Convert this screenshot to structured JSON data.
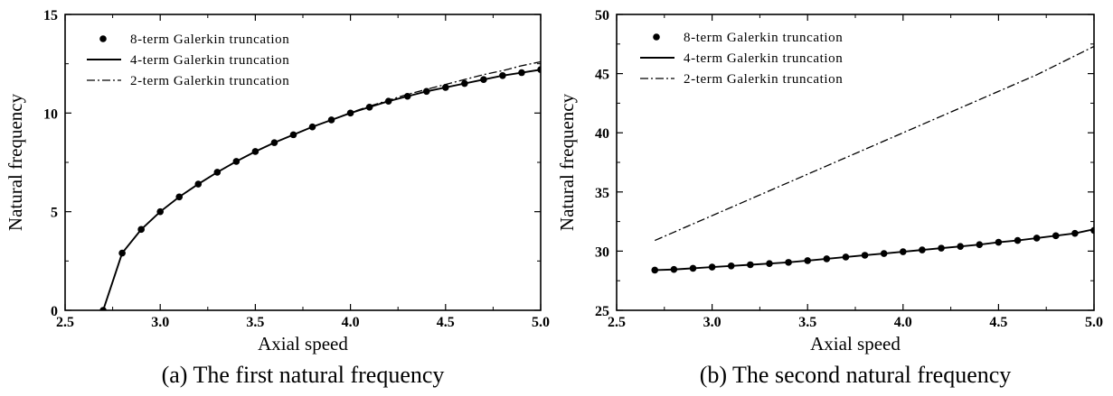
{
  "chart_data": [
    {
      "type": "line",
      "caption": "(a) The first natural frequency",
      "xlabel": "Axial speed",
      "ylabel": "Natural frequency",
      "xlim": [
        2.5,
        5.0
      ],
      "ylim": [
        0,
        15
      ],
      "xticks": [
        "2.5",
        "3.0",
        "3.5",
        "4.0",
        "4.5",
        "5.0"
      ],
      "yticks": [
        "0",
        "5",
        "10",
        "15"
      ],
      "legend_position": "top-left",
      "series": [
        {
          "name": "8-term Galerkin truncation",
          "style": "markers",
          "x": [
            2.7,
            2.8,
            2.9,
            3.0,
            3.1,
            3.2,
            3.3,
            3.4,
            3.5,
            3.6,
            3.7,
            3.8,
            3.9,
            4.0,
            4.1,
            4.2,
            4.3,
            4.4,
            4.5,
            4.6,
            4.7,
            4.8,
            4.9,
            5.0
          ],
          "y": [
            0.0,
            2.9,
            4.1,
            5.0,
            5.75,
            6.4,
            7.0,
            7.55,
            8.05,
            8.5,
            8.9,
            9.3,
            9.65,
            10.0,
            10.3,
            10.6,
            10.85,
            11.1,
            11.3,
            11.5,
            11.7,
            11.9,
            12.05,
            12.2
          ]
        },
        {
          "name": "4-term Galerkin truncation",
          "style": "solid",
          "x": [
            2.7,
            2.8,
            2.9,
            3.0,
            3.1,
            3.2,
            3.3,
            3.4,
            3.5,
            3.6,
            3.7,
            3.8,
            3.9,
            4.0,
            4.1,
            4.2,
            4.3,
            4.4,
            4.5,
            4.6,
            4.7,
            4.8,
            4.9,
            5.0
          ],
          "y": [
            0.0,
            2.9,
            4.1,
            5.0,
            5.75,
            6.4,
            7.0,
            7.55,
            8.05,
            8.5,
            8.9,
            9.3,
            9.65,
            10.0,
            10.3,
            10.6,
            10.85,
            11.1,
            11.3,
            11.5,
            11.7,
            11.9,
            12.05,
            12.2
          ]
        },
        {
          "name": "2-term Galerkin truncation",
          "style": "dash-dot",
          "x": [
            2.7,
            2.8,
            2.9,
            3.0,
            3.1,
            3.2,
            3.3,
            3.4,
            3.5,
            3.6,
            3.7,
            3.8,
            3.9,
            4.0,
            4.1,
            4.2,
            4.3,
            4.4,
            4.5,
            4.6,
            4.7,
            4.8,
            4.9,
            5.0
          ],
          "y": [
            0.0,
            2.9,
            4.1,
            5.0,
            5.75,
            6.4,
            7.0,
            7.55,
            8.05,
            8.5,
            8.9,
            9.3,
            9.65,
            10.02,
            10.35,
            10.65,
            10.95,
            11.2,
            11.45,
            11.7,
            11.95,
            12.15,
            12.4,
            12.6
          ]
        }
      ]
    },
    {
      "type": "line",
      "caption": "(b) The second natural frequency",
      "xlabel": "Axial speed",
      "ylabel": "Natural frequency",
      "xlim": [
        2.5,
        5.0
      ],
      "ylim": [
        25,
        50
      ],
      "xticks": [
        "2.5",
        "3.0",
        "3.5",
        "4.0",
        "4.5",
        "5.0"
      ],
      "yticks": [
        "25",
        "30",
        "35",
        "40",
        "45",
        "50"
      ],
      "legend_position": "top-left",
      "series": [
        {
          "name": "8-term Galerkin truncation",
          "style": "markers",
          "x": [
            2.7,
            2.8,
            2.9,
            3.0,
            3.1,
            3.2,
            3.3,
            3.4,
            3.5,
            3.6,
            3.7,
            3.8,
            3.9,
            4.0,
            4.1,
            4.2,
            4.3,
            4.4,
            4.5,
            4.6,
            4.7,
            4.8,
            4.9,
            5.0
          ],
          "y": [
            28.4,
            28.45,
            28.55,
            28.65,
            28.75,
            28.85,
            28.95,
            29.05,
            29.2,
            29.35,
            29.5,
            29.65,
            29.8,
            29.95,
            30.1,
            30.25,
            30.4,
            30.55,
            30.75,
            30.9,
            31.1,
            31.3,
            31.5,
            31.75
          ]
        },
        {
          "name": "4-term Galerkin truncation",
          "style": "solid",
          "x": [
            2.7,
            2.8,
            2.9,
            3.0,
            3.1,
            3.2,
            3.3,
            3.4,
            3.5,
            3.6,
            3.7,
            3.8,
            3.9,
            4.0,
            4.1,
            4.2,
            4.3,
            4.4,
            4.5,
            4.6,
            4.7,
            4.8,
            4.9,
            5.0
          ],
          "y": [
            28.4,
            28.45,
            28.55,
            28.65,
            28.75,
            28.85,
            28.95,
            29.05,
            29.2,
            29.35,
            29.5,
            29.65,
            29.8,
            29.95,
            30.1,
            30.25,
            30.4,
            30.55,
            30.75,
            30.9,
            31.1,
            31.3,
            31.5,
            31.85
          ]
        },
        {
          "name": "2-term Galerkin truncation",
          "style": "dash-dot",
          "x": [
            2.7,
            2.8,
            2.9,
            3.0,
            3.1,
            3.2,
            3.3,
            3.4,
            3.5,
            3.6,
            3.7,
            3.8,
            3.9,
            4.0,
            4.1,
            4.2,
            4.3,
            4.4,
            4.5,
            4.6,
            4.7,
            4.8,
            4.9,
            5.0
          ],
          "y": [
            30.9,
            31.6,
            32.3,
            33.0,
            33.7,
            34.4,
            35.1,
            35.8,
            36.5,
            37.2,
            37.9,
            38.6,
            39.3,
            40.0,
            40.7,
            41.4,
            42.1,
            42.8,
            43.5,
            44.2,
            44.9,
            45.7,
            46.5,
            47.3
          ]
        }
      ]
    }
  ]
}
